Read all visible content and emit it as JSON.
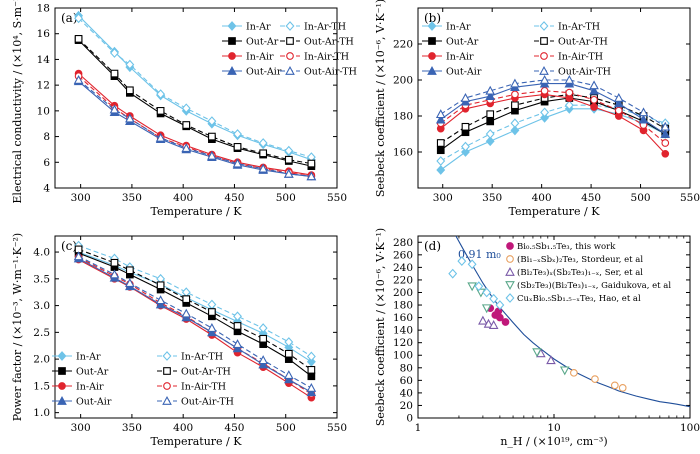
{
  "chart_data": [
    {
      "panel": "(a)",
      "type": "line",
      "xlabel": "Temperature / K",
      "ylabel": "Electrical conductivity / (×10⁴, S·m⁻¹)",
      "xlim": [
        275,
        550
      ],
      "ylim": [
        4,
        18
      ],
      "xticks": [
        300,
        350,
        400,
        450,
        500,
        550
      ],
      "yticks": [
        4,
        6,
        8,
        10,
        12,
        14,
        16,
        18
      ],
      "legend_placement": "top-right",
      "series": [
        {
          "name": "In-Ar",
          "color": "#6ec3e8",
          "marker": "diamond",
          "filled": true,
          "dash": "",
          "x": [
            298,
            333,
            348,
            378,
            403,
            428,
            453,
            478,
            503,
            525
          ],
          "y": [
            17.4,
            14.6,
            13.4,
            11.2,
            10.0,
            9.0,
            8.1,
            7.4,
            6.8,
            6.2
          ]
        },
        {
          "name": "In-Ar-TH",
          "color": "#6ec3e8",
          "marker": "diamond",
          "filled": false,
          "dash": "5,3",
          "x": [
            298,
            333,
            348,
            378,
            403,
            428,
            453,
            478,
            503,
            525
          ],
          "y": [
            17.2,
            14.5,
            13.6,
            11.3,
            10.2,
            9.2,
            8.2,
            7.5,
            6.9,
            6.4
          ]
        },
        {
          "name": "Out-Ar",
          "color": "#000000",
          "marker": "square",
          "filled": true,
          "dash": "",
          "x": [
            298,
            333,
            348,
            378,
            403,
            428,
            453,
            478,
            503,
            525
          ],
          "y": [
            15.5,
            12.7,
            11.4,
            9.8,
            8.8,
            7.8,
            7.1,
            6.6,
            6.1,
            5.7
          ]
        },
        {
          "name": "Out-Ar-TH",
          "color": "#000000",
          "marker": "square",
          "filled": false,
          "dash": "5,3",
          "x": [
            298,
            333,
            348,
            378,
            403,
            428,
            453,
            478,
            503,
            525
          ],
          "y": [
            15.6,
            12.9,
            11.6,
            10.0,
            8.9,
            8.0,
            7.2,
            6.7,
            6.2,
            5.9
          ]
        },
        {
          "name": "In-Air",
          "color": "#e0242e",
          "marker": "circle",
          "filled": true,
          "dash": "",
          "x": [
            298,
            333,
            348,
            378,
            403,
            428,
            453,
            478,
            503,
            525
          ],
          "y": [
            12.9,
            10.4,
            9.6,
            8.1,
            7.3,
            6.6,
            6.0,
            5.6,
            5.3,
            5.0
          ]
        },
        {
          "name": "In-Air-TH",
          "color": "#e0242e",
          "marker": "circle",
          "filled": false,
          "dash": "5,3",
          "x": [
            298,
            333,
            348,
            378,
            403,
            428,
            453,
            478,
            503,
            525
          ],
          "y": [
            12.7,
            10.2,
            9.4,
            7.9,
            7.2,
            6.5,
            5.9,
            5.5,
            5.2,
            4.9
          ]
        },
        {
          "name": "Out-Air",
          "color": "#3a64b4",
          "marker": "triangle",
          "filled": true,
          "dash": "",
          "x": [
            298,
            333,
            348,
            378,
            403,
            428,
            453,
            478,
            503,
            525
          ],
          "y": [
            12.3,
            9.9,
            9.2,
            7.8,
            7.0,
            6.4,
            5.8,
            5.4,
            5.1,
            4.9
          ]
        },
        {
          "name": "Out-Air-TH",
          "color": "#3a64b4",
          "marker": "triangle",
          "filled": false,
          "dash": "5,3",
          "x": [
            298,
            333,
            348,
            378,
            403,
            428,
            453,
            478,
            503,
            525
          ],
          "y": [
            12.4,
            10.1,
            9.4,
            7.9,
            7.1,
            6.5,
            5.9,
            5.5,
            5.1,
            4.9
          ]
        }
      ]
    },
    {
      "panel": "(b)",
      "type": "line",
      "xlabel": "Temperature / K",
      "ylabel": "Seebeck coefficient / (×10⁻⁶, V·K⁻¹)",
      "xlim": [
        275,
        550
      ],
      "ylim": [
        140,
        240
      ],
      "xticks": [
        300,
        350,
        400,
        450,
        500,
        550
      ],
      "yticks": [
        160,
        180,
        200,
        220
      ],
      "legend_placement": "top-left",
      "series": [
        {
          "name": "In-Ar",
          "color": "#6ec3e8",
          "marker": "diamond",
          "filled": true,
          "dash": "",
          "x": [
            298,
            323,
            348,
            373,
            403,
            428,
            453,
            478,
            503,
            525
          ],
          "y": [
            150,
            160,
            166,
            172,
            179,
            184,
            184,
            181,
            176,
            170
          ]
        },
        {
          "name": "In-Ar-TH",
          "color": "#6ec3e8",
          "marker": "diamond",
          "filled": false,
          "dash": "5,3",
          "x": [
            298,
            323,
            348,
            373,
            403,
            428,
            453,
            478,
            503,
            525
          ],
          "y": [
            155,
            163,
            170,
            176,
            182,
            186,
            186,
            184,
            180,
            176
          ]
        },
        {
          "name": "Out-Ar",
          "color": "#000000",
          "marker": "square",
          "filled": true,
          "dash": "",
          "x": [
            298,
            323,
            348,
            373,
            403,
            428,
            453,
            478,
            503,
            525
          ],
          "y": [
            161,
            171,
            177,
            183,
            188,
            190,
            188,
            183,
            177,
            170
          ]
        },
        {
          "name": "Out-Ar-TH",
          "color": "#000000",
          "marker": "square",
          "filled": false,
          "dash": "5,3",
          "x": [
            298,
            323,
            348,
            373,
            403,
            428,
            453,
            478,
            503,
            525
          ],
          "y": [
            165,
            174,
            181,
            186,
            190,
            192,
            190,
            186,
            180,
            173
          ]
        },
        {
          "name": "In-Air",
          "color": "#e0242e",
          "marker": "circle",
          "filled": true,
          "dash": "",
          "x": [
            298,
            323,
            348,
            373,
            403,
            428,
            453,
            478,
            503,
            525
          ],
          "y": [
            173,
            184,
            187,
            190,
            192,
            190,
            185,
            180,
            172,
            159
          ]
        },
        {
          "name": "In-Air-TH",
          "color": "#e0242e",
          "marker": "circle",
          "filled": false,
          "dash": "5,3",
          "x": [
            298,
            323,
            348,
            373,
            403,
            428,
            453,
            478,
            503,
            525
          ],
          "y": [
            176,
            186,
            189,
            192,
            194,
            193,
            189,
            183,
            175,
            165
          ]
        },
        {
          "name": "Out-Air",
          "color": "#3a64b4",
          "marker": "triangle",
          "filled": true,
          "dash": "",
          "x": [
            298,
            323,
            348,
            373,
            403,
            428,
            453,
            478,
            503,
            525
          ],
          "y": [
            178,
            188,
            191,
            196,
            198,
            198,
            194,
            187,
            178,
            170
          ]
        },
        {
          "name": "Out-Air-TH",
          "color": "#3a64b4",
          "marker": "triangle",
          "filled": false,
          "dash": "5,3",
          "x": [
            298,
            323,
            348,
            373,
            403,
            428,
            453,
            478,
            503,
            525
          ],
          "y": [
            181,
            190,
            194,
            198,
            200,
            200,
            197,
            190,
            182,
            174
          ]
        }
      ]
    },
    {
      "panel": "(c)",
      "type": "line",
      "xlabel": "Temperature / K",
      "ylabel": "Power factor / (×10⁻³, W·m⁻¹·K⁻²)",
      "xlim": [
        275,
        550
      ],
      "ylim": [
        0.9,
        4.3
      ],
      "xticks": [
        300,
        350,
        400,
        450,
        500,
        550
      ],
      "yticks": [
        1.0,
        1.5,
        2.0,
        2.5,
        3.0,
        3.5,
        4.0
      ],
      "legend_placement": "bottom-left",
      "series": [
        {
          "name": "In-Ar",
          "color": "#6ec3e8",
          "marker": "diamond",
          "filled": true,
          "dash": "",
          "x": [
            298,
            333,
            348,
            378,
            403,
            428,
            453,
            478,
            503,
            525
          ],
          "y": [
            4.0,
            3.75,
            3.62,
            3.4,
            3.15,
            2.92,
            2.7,
            2.48,
            2.22,
            1.95
          ]
        },
        {
          "name": "In-Ar-TH",
          "color": "#6ec3e8",
          "marker": "diamond",
          "filled": false,
          "dash": "5,3",
          "x": [
            298,
            333,
            348,
            378,
            403,
            428,
            453,
            478,
            503,
            525
          ],
          "y": [
            4.12,
            3.88,
            3.72,
            3.5,
            3.25,
            3.02,
            2.8,
            2.58,
            2.32,
            2.05
          ]
        },
        {
          "name": "Out-Ar",
          "color": "#000000",
          "marker": "square",
          "filled": true,
          "dash": "",
          "x": [
            298,
            333,
            348,
            378,
            403,
            428,
            453,
            478,
            503,
            525
          ],
          "y": [
            3.98,
            3.72,
            3.58,
            3.3,
            3.05,
            2.8,
            2.52,
            2.28,
            2.0,
            1.68
          ]
        },
        {
          "name": "Out-Ar-TH",
          "color": "#000000",
          "marker": "square",
          "filled": false,
          "dash": "5,3",
          "x": [
            298,
            333,
            348,
            378,
            403,
            428,
            453,
            478,
            503,
            525
          ],
          "y": [
            4.05,
            3.8,
            3.66,
            3.38,
            3.12,
            2.88,
            2.62,
            2.38,
            2.1,
            1.8
          ]
        },
        {
          "name": "In-Air",
          "color": "#e0242e",
          "marker": "circle",
          "filled": true,
          "dash": "",
          "x": [
            298,
            333,
            348,
            378,
            403,
            428,
            453,
            478,
            503,
            525
          ],
          "y": [
            3.86,
            3.5,
            3.35,
            3.0,
            2.75,
            2.45,
            2.12,
            1.85,
            1.55,
            1.28
          ]
        },
        {
          "name": "In-Air-TH",
          "color": "#e0242e",
          "marker": "circle",
          "filled": false,
          "dash": "5,3",
          "x": [
            298,
            333,
            348,
            378,
            403,
            428,
            453,
            478,
            503,
            525
          ],
          "y": [
            3.9,
            3.55,
            3.4,
            3.05,
            2.8,
            2.5,
            2.2,
            1.92,
            1.62,
            1.35
          ]
        },
        {
          "name": "Out-Air",
          "color": "#3a64b4",
          "marker": "triangle",
          "filled": true,
          "dash": "",
          "x": [
            298,
            333,
            348,
            378,
            403,
            428,
            453,
            478,
            503,
            525
          ],
          "y": [
            3.88,
            3.52,
            3.36,
            3.02,
            2.78,
            2.5,
            2.2,
            1.9,
            1.62,
            1.38
          ]
        },
        {
          "name": "Out-Air-TH",
          "color": "#3a64b4",
          "marker": "triangle",
          "filled": false,
          "dash": "5,3",
          "x": [
            298,
            333,
            348,
            378,
            403,
            428,
            453,
            478,
            503,
            525
          ],
          "y": [
            3.92,
            3.58,
            3.42,
            3.1,
            2.85,
            2.58,
            2.28,
            1.98,
            1.7,
            1.46
          ]
        }
      ]
    },
    {
      "panel": "(d)",
      "type": "scatter",
      "xlabel": "n_H / (×10¹⁹, cm⁻³)",
      "ylabel": "Seebeck coefficient / (×10⁻⁶, V·K⁻¹)",
      "xscale": "log",
      "xlim": [
        1,
        100
      ],
      "ylim": [
        0,
        290
      ],
      "xticks": [
        1,
        10,
        100
      ],
      "yticks": [
        0,
        20,
        40,
        60,
        80,
        100,
        120,
        140,
        160,
        180,
        200,
        220,
        240,
        260,
        280
      ],
      "legend_placement": "top-right",
      "curve_label": "0.91 m₀",
      "curve": {
        "color": "#1f4e9a",
        "x": [
          1.9,
          2.2,
          2.6,
          3.0,
          3.5,
          4.0,
          5.0,
          6.0,
          7.0,
          8.0,
          10,
          12,
          15,
          20,
          25,
          30,
          40,
          50,
          60,
          70,
          80,
          100
        ],
        "y": [
          290,
          265,
          238,
          215,
          193,
          176,
          152,
          133,
          120,
          110,
          94,
          83,
          71,
          58,
          50,
          43,
          35,
          30,
          26,
          24,
          22,
          18
        ]
      },
      "series": [
        {
          "name": "Bi₀.₅Sb₁.₅Te₃, this work",
          "color": "#c0187a",
          "marker": "circle",
          "x": [
            3.4,
            3.7,
            4.0,
            4.4,
            3.9
          ],
          "y": [
            175,
            164,
            160,
            153,
            170
          ]
        },
        {
          "name": "(Bi₁₋ₓSbₓ)₂Te₃, Stordeur, et al",
          "color": "#e8a060",
          "marker": "circle-open",
          "x": [
            14,
            20,
            28,
            32
          ],
          "y": [
            72,
            62,
            52,
            48
          ]
        },
        {
          "name": "(Bi₂Te₃)ₓ(Sb₂Te₃)₁₋ₓ, Ser, et al",
          "color": "#7a5aa8",
          "marker": "triangle-open",
          "x": [
            3.0,
            3.3,
            3.6,
            8.0,
            9.5
          ],
          "y": [
            155,
            150,
            148,
            103,
            92
          ]
        },
        {
          "name": "(Sb₂Te₃)(Bi₂Te₃)₁₋ₓ, Gaidukova, et al",
          "color": "#5aa88a",
          "marker": "triangle-down-open",
          "x": [
            2.5,
            2.9,
            3.2,
            7.5,
            12
          ],
          "y": [
            210,
            200,
            175,
            105,
            76
          ]
        },
        {
          "name": "CuₓBi₀.₅Sb₁.₅₋ₓTe₃, Hao, et al",
          "color": "#6ec3e8",
          "marker": "diamond-open",
          "x": [
            1.8,
            2.1,
            2.5,
            2.8,
            3.2,
            3.6,
            4.0
          ],
          "y": [
            230,
            250,
            245,
            210,
            200,
            190,
            180
          ]
        }
      ]
    }
  ]
}
